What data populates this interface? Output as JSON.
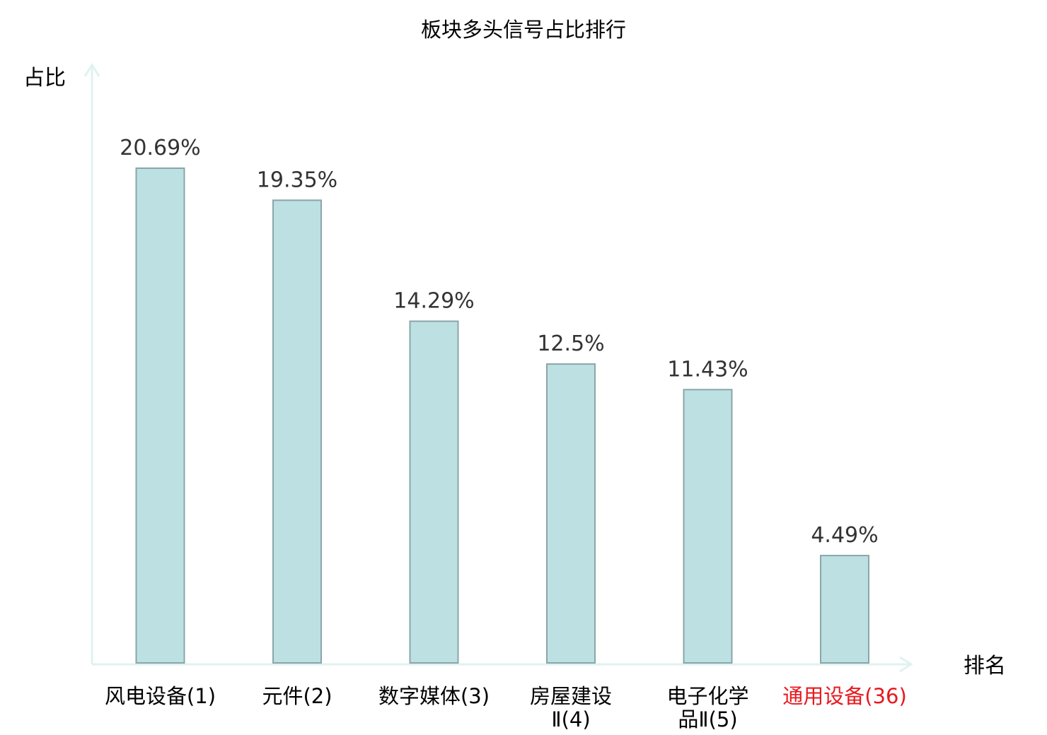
{
  "chart_data": {
    "type": "bar",
    "title": "板块多头信号占比排行",
    "xlabel": "排名",
    "ylabel": "占比",
    "categories": [
      [
        "风电设备(1)"
      ],
      [
        "元件(2)"
      ],
      [
        "数字媒体(3)"
      ],
      [
        "房屋建设",
        "Ⅱ(4)"
      ],
      [
        "电子化学",
        "品Ⅱ(5)"
      ],
      [
        "通用设备(36)"
      ]
    ],
    "values": [
      20.69,
      19.35,
      14.29,
      12.5,
      11.43,
      4.49
    ],
    "value_labels": [
      "20.69%",
      "19.35%",
      "14.29%",
      "12.5%",
      "11.43%",
      "4.49%"
    ],
    "highlight_index": 5,
    "ylim": [
      0,
      25
    ],
    "grid": false,
    "colors": {
      "bar_fill": "#bde0e3",
      "bar_stroke": "#8aa6a8",
      "axis": "#e0f2f0",
      "text": "#000000",
      "value_label": "#333333",
      "highlight": "#e8191e"
    }
  }
}
